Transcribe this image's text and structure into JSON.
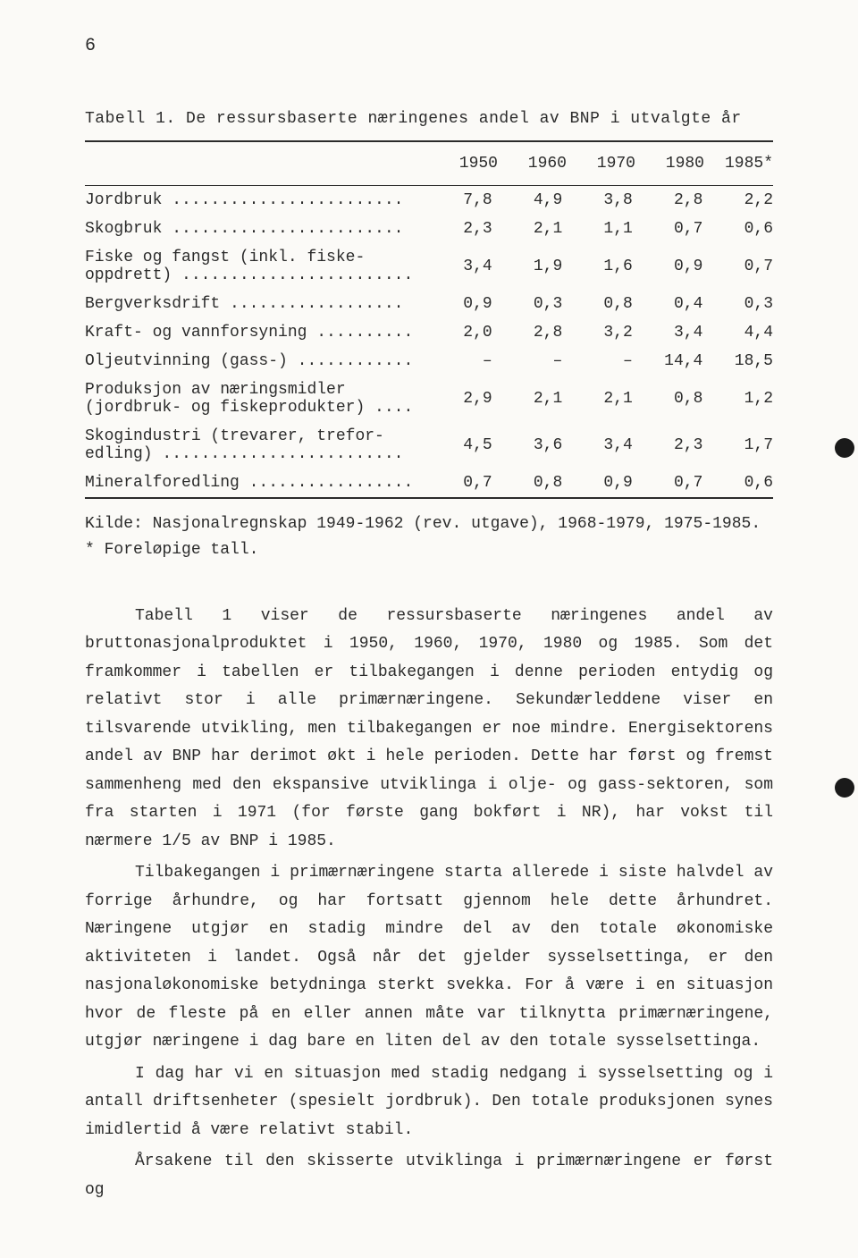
{
  "page_number": "6",
  "table": {
    "title": "Tabell 1. De ressursbaserte næringenes andel av BNP i utvalgte år",
    "year_headers": [
      "1950",
      "1960",
      "1970",
      "1980",
      "1985*"
    ],
    "rows": [
      {
        "label": "Jordbruk ........................",
        "values": [
          "7,8",
          "4,9",
          "3,8",
          "2,8",
          "2,2"
        ]
      },
      {
        "label": "Skogbruk ........................",
        "values": [
          "2,3",
          "2,1",
          "1,1",
          "0,7",
          "0,6"
        ]
      },
      {
        "label": "Fiske og fangst (inkl. fiske-\noppdrett) ........................",
        "values": [
          "3,4",
          "1,9",
          "1,6",
          "0,9",
          "0,7"
        ]
      },
      {
        "label": "Bergverksdrift ..................",
        "values": [
          "0,9",
          "0,3",
          "0,8",
          "0,4",
          "0,3"
        ]
      },
      {
        "label": "Kraft- og vannforsyning ..........",
        "values": [
          "2,0",
          "2,8",
          "3,2",
          "3,4",
          "4,4"
        ]
      },
      {
        "label": "Oljeutvinning (gass-) ............",
        "values": [
          "–",
          "–",
          "–",
          "14,4",
          "18,5"
        ]
      },
      {
        "label": "Produksjon av næringsmidler\n(jordbruk- og fiskeprodukter) ....",
        "values": [
          "2,9",
          "2,1",
          "2,1",
          "0,8",
          "1,2"
        ]
      },
      {
        "label": "Skogindustri (trevarer, trefor-\nedling) .........................",
        "values": [
          "4,5",
          "3,6",
          "3,4",
          "2,3",
          "1,7"
        ]
      },
      {
        "label": "Mineralforedling .................",
        "values": [
          "0,7",
          "0,8",
          "0,9",
          "0,7",
          "0,6"
        ]
      }
    ]
  },
  "source_line1": "Kilde: Nasjonalregnskap 1949-1962 (rev. utgave), 1968-1979, 1975-1985.",
  "source_line2": "* Foreløpige tall.",
  "paragraphs": {
    "p1": "Tabell  1 viser de ressursbaserte næringenes andel av bruttonasjonalproduktet i 1950, 1960, 1970, 1980 og 1985. Som det framkommer i  tabellen  er  tilbakegangen  i  denne  perioden  entydig og relativt stor i alle primærnæringene. Sekundærleddene viser en tilsvarende utvikling,  men  tilbakegangen  er  noe  mindre. Energisektorens andel av BNP har derimot økt i hele perioden. Dette har først og fremst sammenheng med den ekspansive  utviklinga  i olje- og gass-sektoren, som fra starten i 1971 (for første gang bokført i NR), har vokst til nærmere 1/5 av BNP i 1985.",
    "p2": "Tilbakegangen i primærnæringene starta allerede i siste halvdel  av forrige  århundre,  og har fortsatt gjennom hele dette århundret. Næringene utgjør en stadig mindre del av den totale økonomiske aktiviteten i  landet. Også  når  det gjelder sysselsettinga, er den nasjonaløkonomiske betydninga sterkt svekka. For å være i en situasjon hvor de fleste på en  eller  annen måte  var  tilknytta  primærnæringene, utgjør næringene i dag bare en liten del av den totale sysselsettinga.",
    "p3": "I  dag  har vi en situasjon med stadig nedgang i sysselsetting og i antall driftsenheter (spesielt jordbruk).  Den  totale  produksjonen  synes imidlertid å være relativt stabil.",
    "p4": "Årsakene til den skisserte utviklinga i primærnæringene er først og"
  }
}
